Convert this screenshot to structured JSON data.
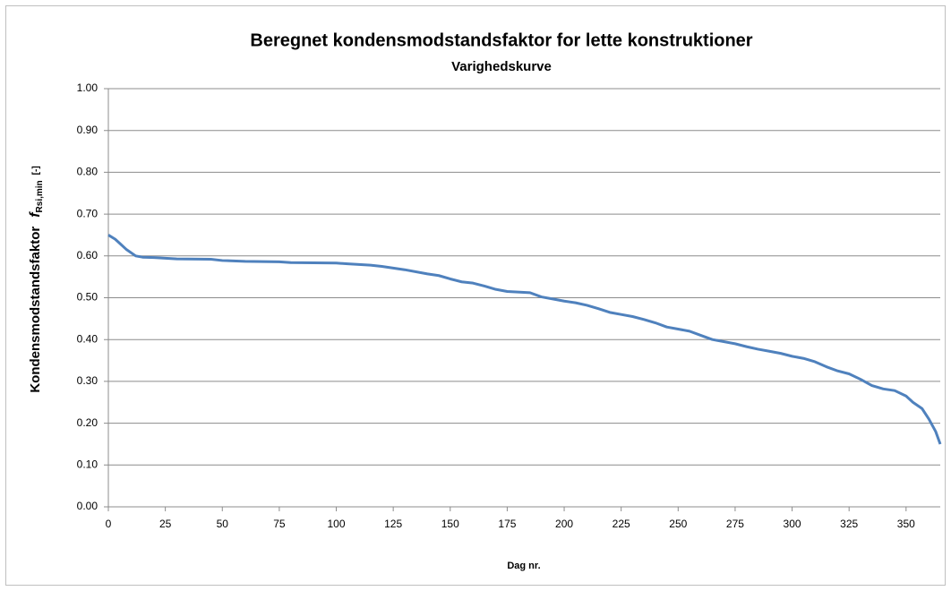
{
  "chart_data": {
    "type": "line",
    "title": "Beregnet kondensmodstandsfaktor  for lette konstruktioner",
    "subtitle": "Varighedskurve",
    "xlabel": "Dag nr.",
    "ylabel": "Kondensmodstandsfaktor",
    "ylabel_symbol": "f",
    "ylabel_subscript": "Rsi,min",
    "ylabel_unit": "[-]",
    "x": [
      0,
      3,
      5,
      8,
      12,
      15,
      20,
      30,
      45,
      50,
      60,
      75,
      80,
      100,
      105,
      115,
      120,
      130,
      140,
      145,
      150,
      155,
      160,
      165,
      170,
      175,
      185,
      190,
      195,
      200,
      205,
      210,
      215,
      220,
      225,
      230,
      235,
      240,
      245,
      250,
      255,
      260,
      265,
      270,
      275,
      280,
      285,
      290,
      295,
      300,
      305,
      310,
      315,
      320,
      325,
      330,
      335,
      340,
      345,
      350,
      353,
      357,
      360,
      363,
      365
    ],
    "series": [
      {
        "name": "fRsi,min",
        "color": "#4f81bd",
        "values": [
          0.65,
          0.64,
          0.63,
          0.615,
          0.6,
          0.597,
          0.596,
          0.593,
          0.592,
          0.589,
          0.587,
          0.586,
          0.584,
          0.583,
          0.581,
          0.578,
          0.575,
          0.567,
          0.557,
          0.553,
          0.545,
          0.538,
          0.535,
          0.528,
          0.52,
          0.515,
          0.512,
          0.502,
          0.497,
          0.492,
          0.488,
          0.482,
          0.474,
          0.465,
          0.46,
          0.455,
          0.448,
          0.44,
          0.43,
          0.425,
          0.42,
          0.41,
          0.4,
          0.395,
          0.39,
          0.383,
          0.377,
          0.372,
          0.367,
          0.36,
          0.355,
          0.347,
          0.335,
          0.325,
          0.318,
          0.305,
          0.29,
          0.282,
          0.278,
          0.265,
          0.25,
          0.235,
          0.21,
          0.18,
          0.15
        ]
      }
    ],
    "xlim": [
      0,
      365
    ],
    "xticks": [
      0,
      25,
      50,
      75,
      100,
      125,
      150,
      175,
      200,
      225,
      250,
      275,
      300,
      325,
      350
    ],
    "ylim": [
      0,
      1
    ],
    "yticks": [
      {
        "value": 0,
        "label": "0.00"
      },
      {
        "value": 0.1,
        "label": "0.10"
      },
      {
        "value": 0.2,
        "label": "0.20"
      },
      {
        "value": 0.3,
        "label": "0.30"
      },
      {
        "value": 0.4,
        "label": "0.40"
      },
      {
        "value": 0.5,
        "label": "0.50"
      },
      {
        "value": 0.6,
        "label": "0.60"
      },
      {
        "value": 0.7,
        "label": "0.70"
      },
      {
        "value": 0.8,
        "label": "0.80"
      },
      {
        "value": 0.9,
        "label": "0.90"
      },
      {
        "value": 1,
        "label": "1.00"
      }
    ],
    "grid": true
  }
}
